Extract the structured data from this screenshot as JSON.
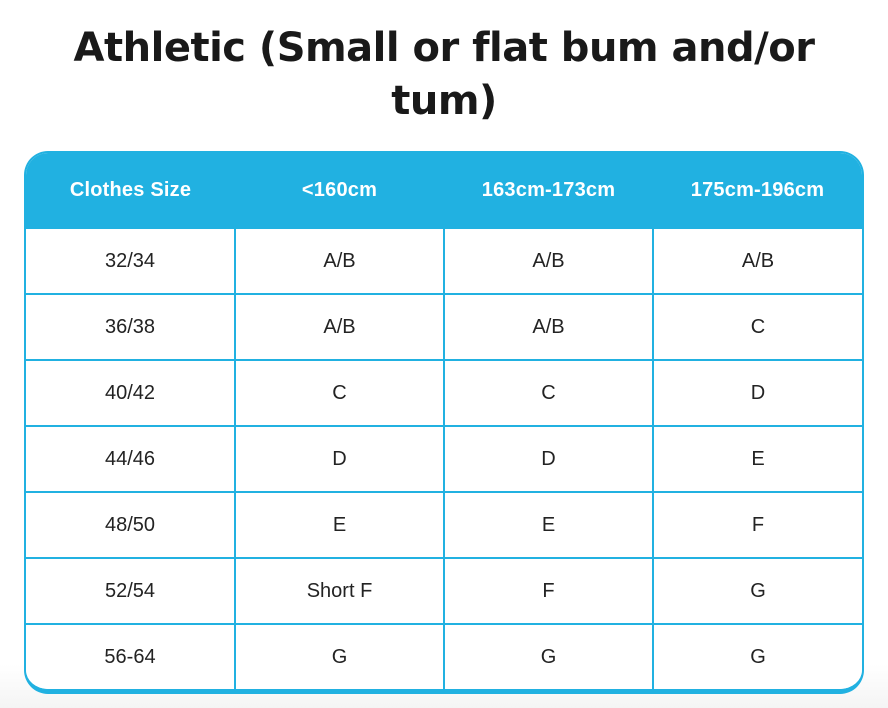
{
  "title": {
    "full": "Athletic (Small or flat bum and/or tum)",
    "lines": [
      "Athletic (Small or flat bum and/or",
      "tum)"
    ]
  },
  "chart_data": {
    "type": "table",
    "title": "Athletic (Small or flat bum and/or tum)",
    "columns": [
      "Clothes Size",
      "<160cm",
      "163cm-173cm",
      "175cm-196cm"
    ],
    "rows": [
      [
        "32/34",
        "A/B",
        "A/B",
        "A/B"
      ],
      [
        "36/38",
        "A/B",
        "A/B",
        "C"
      ],
      [
        "40/42",
        "C",
        "C",
        "D"
      ],
      [
        "44/46",
        "D",
        "D",
        "E"
      ],
      [
        "48/50",
        "E",
        "E",
        "F"
      ],
      [
        "52/54",
        "Short F",
        "F",
        "G"
      ],
      [
        "56-64",
        "G",
        "G",
        "G"
      ]
    ]
  },
  "colors": {
    "accent": "#21b1e1",
    "header_text": "#ffffff",
    "body_text": "#232323",
    "title_text": "#191919",
    "row_background": "#ffffff"
  }
}
